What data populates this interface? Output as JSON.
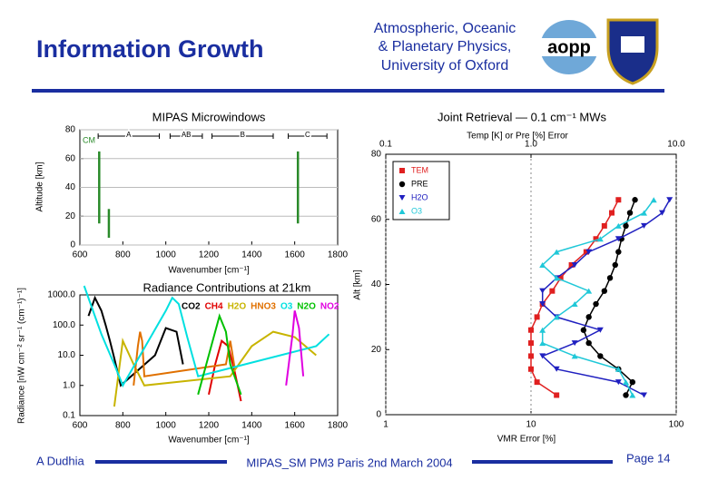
{
  "header": {
    "title": "Information Growth",
    "institute": [
      "Atmospheric, Oceanic",
      "& Planetary Physics,",
      "University of Oxford"
    ],
    "logo_text": "aopp"
  },
  "footer": {
    "author": "A Dudhia",
    "event": "MIPAS_SM PM3 Paris 2nd March 2004",
    "page": "Page 14"
  },
  "chart_data": [
    {
      "type": "bar",
      "title": "MIPAS Microwindows",
      "xlabel": "Wavenumber [cm⁻¹]",
      "ylabel": "Altitude [km]",
      "x": [
        690,
        735,
        1615
      ],
      "series": [
        {
          "name": "CM",
          "color": "#2a8a2a",
          "values": [
            65,
            25,
            65
          ],
          "base": [
            15,
            5,
            15
          ]
        }
      ],
      "bands": [
        {
          "label": "A",
          "range": [
            685,
            970
          ]
        },
        {
          "label": "AB",
          "range": [
            1020,
            1170
          ]
        },
        {
          "label": "B",
          "range": [
            1215,
            1500
          ]
        },
        {
          "label": "C",
          "range": [
            1570,
            1750
          ]
        }
      ],
      "xlim": [
        600,
        1800
      ],
      "xticks": [
        600,
        800,
        1000,
        1200,
        1400,
        1600,
        1800
      ],
      "ylim": [
        0,
        80
      ],
      "yticks": [
        0,
        20,
        40,
        60,
        80
      ],
      "grid": true
    },
    {
      "type": "line",
      "title": "Radiance Contributions at 21km",
      "xlabel": "Wavenumber [cm⁻¹]",
      "ylabel": "Radiance [nW cm⁻² sr⁻¹ (cm⁻¹)⁻¹]",
      "ylog": true,
      "series": [
        {
          "name": "CO2",
          "color": "#000000",
          "x": [
            640,
            670,
            700,
            720,
            740,
            760,
            790,
            950,
            1000,
            1050,
            1080
          ],
          "values": [
            200,
            800,
            300,
            100,
            30,
            8,
            1,
            10,
            80,
            60,
            5
          ]
        },
        {
          "name": "CH4",
          "color": "#e00000",
          "x": [
            1200,
            1230,
            1260,
            1290,
            1320,
            1350
          ],
          "values": [
            0.5,
            5,
            30,
            20,
            3,
            0.3
          ]
        },
        {
          "name": "H2O",
          "color": "#c8b400",
          "x": [
            760,
            800,
            850,
            900,
            1300,
            1400,
            1500,
            1600,
            1700
          ],
          "values": [
            0.2,
            30,
            5,
            1,
            2,
            20,
            60,
            40,
            10
          ]
        },
        {
          "name": "HNO3",
          "color": "#e07000",
          "x": [
            850,
            870,
            880,
            890,
            900,
            1280,
            1300,
            1320
          ],
          "values": [
            1,
            20,
            60,
            30,
            2,
            5,
            30,
            4
          ]
        },
        {
          "name": "O3",
          "color": "#00e0e0",
          "x": [
            620,
            650,
            700,
            760,
            800,
            1000,
            1030,
            1060,
            1100,
            1150,
            1700,
            1760
          ],
          "values": [
            2000,
            500,
            50,
            5,
            1,
            300,
            800,
            500,
            40,
            2,
            20,
            50
          ]
        },
        {
          "name": "N2O",
          "color": "#00c000",
          "x": [
            1150,
            1200,
            1250,
            1280,
            1300,
            1350
          ],
          "values": [
            0.5,
            10,
            200,
            60,
            5,
            0.5
          ]
        },
        {
          "name": "NO2",
          "color": "#e000e0",
          "x": [
            1560,
            1590,
            1600,
            1620,
            1640
          ],
          "values": [
            1,
            50,
            300,
            80,
            2
          ]
        }
      ],
      "xlim": [
        600,
        1800
      ],
      "xticks": [
        600,
        800,
        1000,
        1200,
        1400,
        1600,
        1800
      ],
      "ylim": [
        0.1,
        1000
      ],
      "yticks": [
        0.1,
        {
          "value": 1,
          "label": "1.0"
        },
        {
          "value": 10,
          "label": "10.0"
        },
        {
          "value": 100,
          "label": "100.0"
        },
        {
          "value": 1000,
          "label": "1000.0"
        }
      ]
    },
    {
      "type": "profile",
      "title": "Joint Retrieval — 0.1 cm⁻¹ MWs",
      "xlabel": "VMR Error [%]",
      "x2label": "Temp [K] or Pre [%] Error",
      "ylabel": "Alt [km]",
      "xlog": true,
      "y": [
        6,
        10,
        14,
        18,
        22,
        26,
        30,
        34,
        38,
        42,
        46,
        50,
        54,
        58,
        62,
        66
      ],
      "series": [
        {
          "name": "TEM",
          "color": "#e02020",
          "marker": "square",
          "axis": "x2",
          "values": [
            1.5,
            1.1,
            1.0,
            1.0,
            1.0,
            1.0,
            1.1,
            1.2,
            1.4,
            1.6,
            1.9,
            2.4,
            2.8,
            3.2,
            3.6,
            4.0
          ]
        },
        {
          "name": "PRE",
          "color": "#000000",
          "marker": "circle",
          "axis": "x2",
          "values": [
            4.5,
            5,
            4,
            3,
            2.5,
            2.3,
            2.5,
            2.8,
            3.2,
            3.5,
            3.8,
            4,
            4.2,
            4.5,
            4.8,
            5.2
          ]
        },
        {
          "name": "H2O",
          "color": "#2020c0",
          "marker": "down",
          "values": [
            60,
            40,
            15,
            12,
            20,
            30,
            15,
            12,
            12,
            15,
            20,
            25,
            40,
            60,
            80,
            90
          ]
        },
        {
          "name": "O3",
          "color": "#20c8d8",
          "marker": "up",
          "values": [
            50,
            45,
            40,
            20,
            12,
            12,
            15,
            20,
            25,
            15,
            12,
            15,
            30,
            40,
            60,
            70
          ]
        }
      ],
      "xlim": [
        1,
        100
      ],
      "xticks": [
        1,
        10,
        100
      ],
      "x2lim": [
        0.1,
        10
      ],
      "x2ticks": [
        0.1,
        {
          "value": 1,
          "label": "1.0"
        },
        {
          "value": 10,
          "label": "10.0"
        }
      ],
      "ylim": [
        0,
        80
      ],
      "yticks": [
        0,
        20,
        40,
        60,
        80
      ],
      "grid": true
    }
  ]
}
